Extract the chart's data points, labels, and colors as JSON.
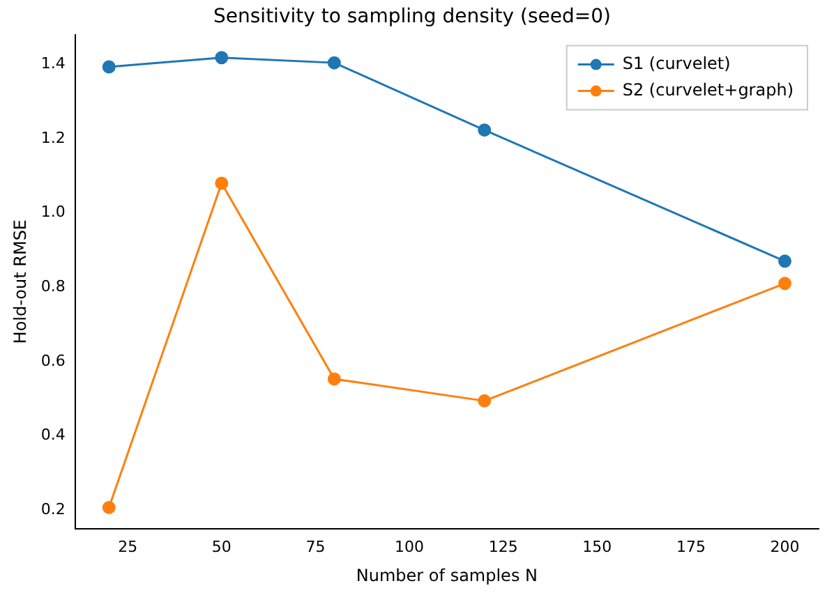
{
  "chart_data": {
    "type": "line",
    "title": "Sensitivity to sampling density (seed=0)",
    "xlabel": "Number of samples N",
    "ylabel": "Hold-out RMSE",
    "x": [
      20,
      50,
      80,
      120,
      200
    ],
    "series": [
      {
        "name": "S1 (curvelet)",
        "color": "#1f77b4",
        "values": [
          1.393,
          1.418,
          1.404,
          1.223,
          0.87
        ]
      },
      {
        "name": "S2 (curvelet+graph)",
        "color": "#ff7f0e",
        "values": [
          0.207,
          1.08,
          0.553,
          0.494,
          0.81
        ]
      }
    ],
    "xlim": [
      11,
      209
    ],
    "xticks": [
      25,
      50,
      75,
      100,
      125,
      150,
      175,
      200
    ],
    "ylim": [
      0.15,
      1.48
    ],
    "yticks": [
      {
        "value": 0.2,
        "label": "0.2"
      },
      {
        "value": 0.4,
        "label": "0.4"
      },
      {
        "value": 0.6,
        "label": "0.6"
      },
      {
        "value": 0.8,
        "label": "0.8"
      },
      {
        "value": 1.0,
        "label": "1.0"
      },
      {
        "value": 1.2,
        "label": "1.2"
      },
      {
        "value": 1.4,
        "label": "1.4"
      }
    ],
    "legend": "top right",
    "marker": "circle",
    "line_style": "solid"
  }
}
